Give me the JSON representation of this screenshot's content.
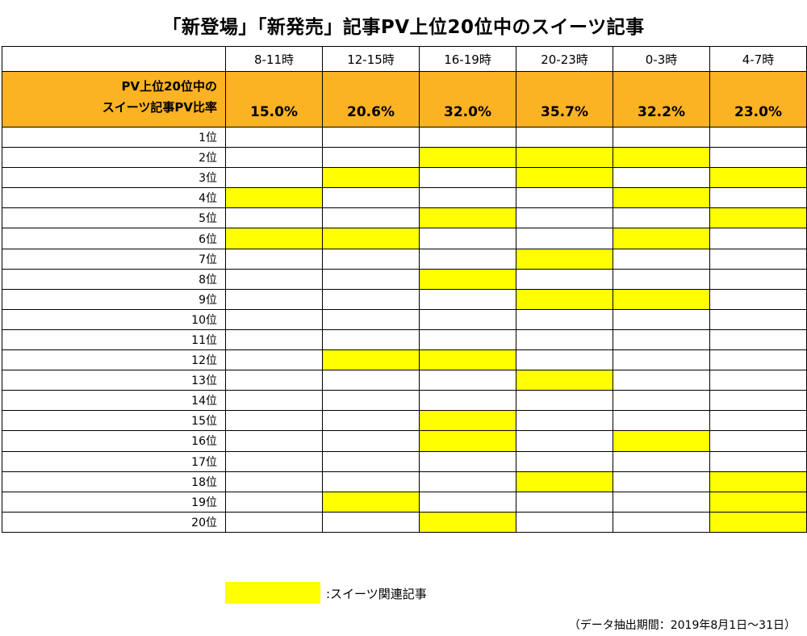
{
  "title": "「新登場」「新発売」記事PV上位20位中のスイーツ記事",
  "chart_data": {
    "type": "table",
    "columns": [
      "8-11時",
      "12-15時",
      "16-19時",
      "20-23時",
      "0-3時",
      "4-7時"
    ],
    "ratio_label_line1": "PV上位20位中の",
    "ratio_label_line2": "スイーツ記事PV比率",
    "ratios": [
      "15.0%",
      "20.6%",
      "32.0%",
      "35.7%",
      "32.2%",
      "23.0%"
    ],
    "ranks": [
      "1位",
      "2位",
      "3位",
      "4位",
      "5位",
      "6位",
      "7位",
      "8位",
      "9位",
      "10位",
      "11位",
      "12位",
      "13位",
      "14位",
      "15位",
      "16位",
      "17位",
      "18位",
      "19位",
      "20位"
    ],
    "highlighted": [
      [
        0,
        0,
        0,
        0,
        0,
        0
      ],
      [
        0,
        0,
        1,
        1,
        1,
        0
      ],
      [
        0,
        1,
        0,
        1,
        0,
        1
      ],
      [
        1,
        0,
        0,
        0,
        1,
        0
      ],
      [
        0,
        0,
        1,
        0,
        0,
        1
      ],
      [
        1,
        1,
        0,
        0,
        1,
        0
      ],
      [
        0,
        0,
        0,
        1,
        0,
        0
      ],
      [
        0,
        0,
        1,
        0,
        0,
        0
      ],
      [
        0,
        0,
        0,
        1,
        1,
        0
      ],
      [
        0,
        0,
        0,
        0,
        0,
        0
      ],
      [
        0,
        0,
        0,
        0,
        0,
        0
      ],
      [
        0,
        1,
        1,
        0,
        0,
        0
      ],
      [
        0,
        0,
        0,
        1,
        0,
        0
      ],
      [
        0,
        0,
        0,
        0,
        0,
        0
      ],
      [
        0,
        0,
        1,
        0,
        0,
        0
      ],
      [
        0,
        0,
        1,
        0,
        1,
        0
      ],
      [
        0,
        0,
        0,
        0,
        0,
        0
      ],
      [
        0,
        0,
        0,
        1,
        0,
        1
      ],
      [
        0,
        1,
        0,
        0,
        0,
        1
      ],
      [
        0,
        0,
        1,
        0,
        0,
        1
      ]
    ],
    "highlight_color": "#ffff00",
    "header_color": "#fbb223"
  },
  "legend": {
    "label": ":スイーツ関連記事"
  },
  "source_note": "（データ抽出期間：2019年8月1日～31日）"
}
